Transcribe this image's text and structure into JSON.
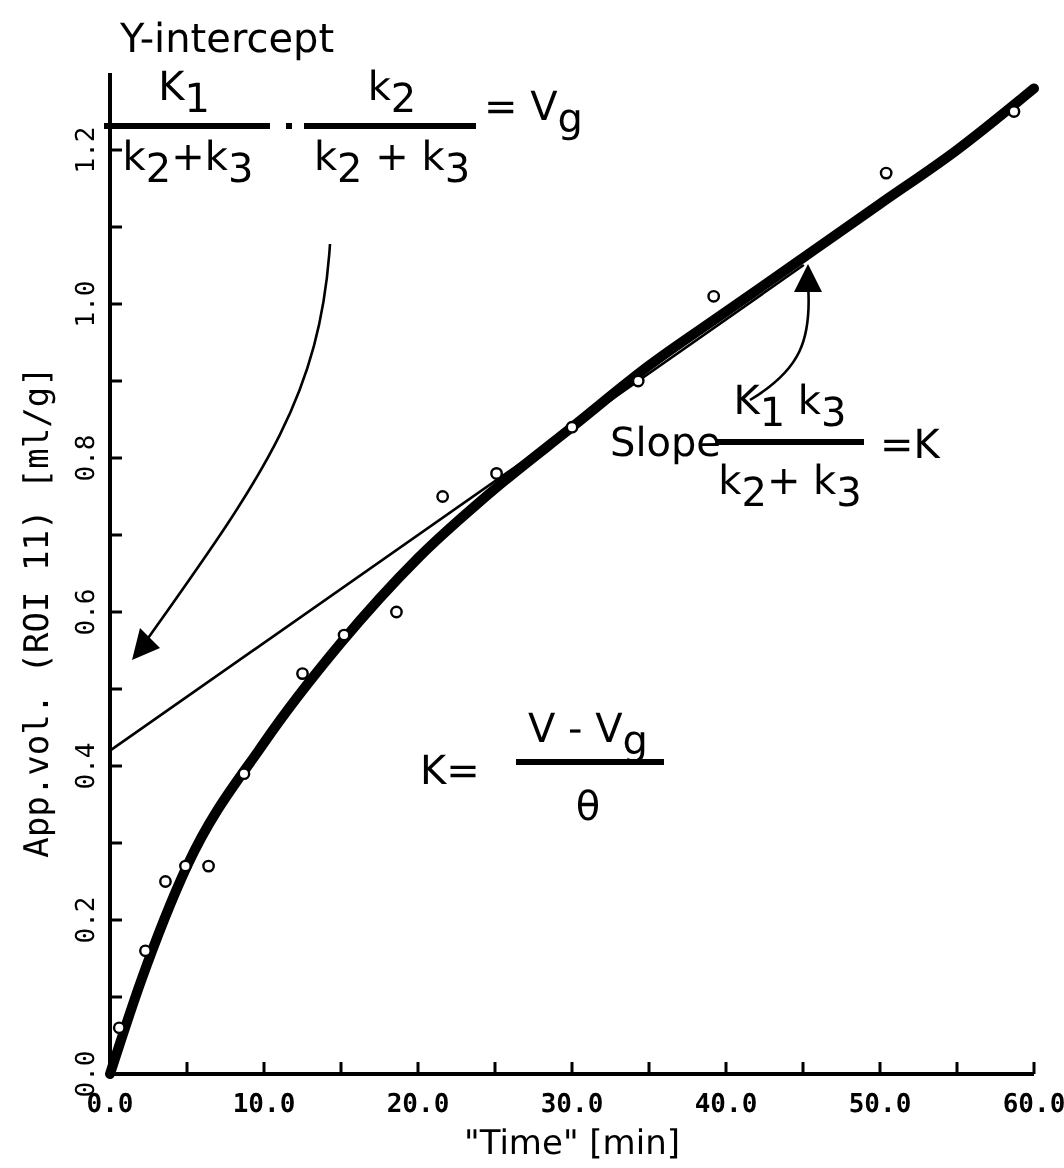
{
  "chart_data": {
    "type": "scatter",
    "xlabel": "\"Time\" [min]",
    "ylabel": "App.vol. (ROI 11) [ml/g]",
    "xlim": [
      0,
      60
    ],
    "ylim": [
      0,
      1.3
    ],
    "xticks": [
      {
        "value": 0,
        "label": "0.0"
      },
      {
        "value": 5,
        "label": null
      },
      {
        "value": 10,
        "label": "10.0"
      },
      {
        "value": 15,
        "label": null
      },
      {
        "value": 20,
        "label": "20.0"
      },
      {
        "value": 25,
        "label": null
      },
      {
        "value": 30,
        "label": "30.0"
      },
      {
        "value": 35,
        "label": null
      },
      {
        "value": 40,
        "label": "40.0"
      },
      {
        "value": 45,
        "label": null
      },
      {
        "value": 50,
        "label": "50.0"
      },
      {
        "value": 55,
        "label": null
      },
      {
        "value": 60,
        "label": "60.0"
      }
    ],
    "yticks": [
      {
        "value": 0,
        "label": "0.0"
      },
      {
        "value": 0.1,
        "label": null
      },
      {
        "value": 0.2,
        "label": "0.2"
      },
      {
        "value": 0.3,
        "label": null
      },
      {
        "value": 0.4,
        "label": "0.4"
      },
      {
        "value": 0.5,
        "label": null
      },
      {
        "value": 0.6,
        "label": "0.6"
      },
      {
        "value": 0.7,
        "label": null
      },
      {
        "value": 0.8,
        "label": "0.8"
      },
      {
        "value": 0.9,
        "label": null
      },
      {
        "value": 1.0,
        "label": "1.0"
      },
      {
        "value": 1.1,
        "label": null
      },
      {
        "value": 1.2,
        "label": "1.2"
      }
    ],
    "series": [
      {
        "type": "scatter",
        "marker": "circle",
        "color": "#000000",
        "x": [
          0.6,
          2.3,
          3.6,
          4.9,
          6.4,
          8.7,
          12.5,
          15.2,
          18.6,
          21.6,
          25.1,
          30.0,
          34.3,
          39.2,
          50.4,
          58.7
        ],
        "values": [
          0.06,
          0.16,
          0.25,
          0.27,
          0.27,
          0.39,
          0.52,
          0.57,
          0.6,
          0.75,
          0.78,
          0.84,
          0.9,
          1.01,
          1.17,
          1.25
        ]
      },
      {
        "type": "line",
        "marker": "none",
        "color": "#000000",
        "x": [
          0,
          2,
          5,
          10,
          15,
          20,
          25,
          30,
          35,
          40,
          45,
          50,
          55,
          60
        ],
        "values": [
          0,
          0.12,
          0.27,
          0.43,
          0.56,
          0.67,
          0.76,
          0.84,
          0.92,
          0.99,
          1.06,
          1.13,
          1.2,
          1.28
        ]
      },
      {
        "type": "line",
        "marker": "none",
        "color": "#000000",
        "x": [
          0,
          45
        ],
        "values": [
          0.42,
          1.05
        ]
      }
    ],
    "annotations": [
      "Y-intercept",
      "K$_{1}$",
      "k$_{2}$+k$_{3}$",
      "k$_{2}$",
      "k$_{2}$ + k$_{3}$",
      "= V$_{g}$",
      "Slope",
      "K$_{1}$ k$_{3}$",
      "k$_{2}$+ k$_{3}$",
      "=K",
      "K=",
      "V - V$_{g}$",
      "θ"
    ]
  }
}
